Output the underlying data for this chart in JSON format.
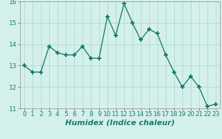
{
  "x": [
    0,
    1,
    2,
    3,
    4,
    5,
    6,
    7,
    8,
    9,
    10,
    11,
    12,
    13,
    14,
    15,
    16,
    17,
    18,
    19,
    20,
    21,
    22,
    23
  ],
  "y": [
    13.0,
    12.7,
    12.7,
    13.9,
    13.6,
    13.5,
    13.5,
    13.9,
    13.35,
    13.35,
    15.3,
    14.4,
    15.9,
    15.0,
    14.2,
    14.7,
    14.5,
    13.5,
    12.7,
    12.0,
    12.5,
    12.0,
    11.1,
    11.2
  ],
  "line_color": "#1a7a6e",
  "marker": "+",
  "marker_size": 5,
  "marker_linewidth": 1.5,
  "background_color": "#d4f0eb",
  "grid_color": "#b0d8d0",
  "xlabel": "Humidex (Indice chaleur)",
  "xlabel_fontsize": 8,
  "xlabel_bold": true,
  "ylim": [
    11,
    16
  ],
  "xlim": [
    -0.5,
    23.5
  ],
  "yticks": [
    11,
    12,
    13,
    14,
    15,
    16
  ],
  "xticks": [
    0,
    1,
    2,
    3,
    4,
    5,
    6,
    7,
    8,
    9,
    10,
    11,
    12,
    13,
    14,
    15,
    16,
    17,
    18,
    19,
    20,
    21,
    22,
    23
  ],
  "tick_fontsize": 6.5,
  "linewidth": 1.0
}
